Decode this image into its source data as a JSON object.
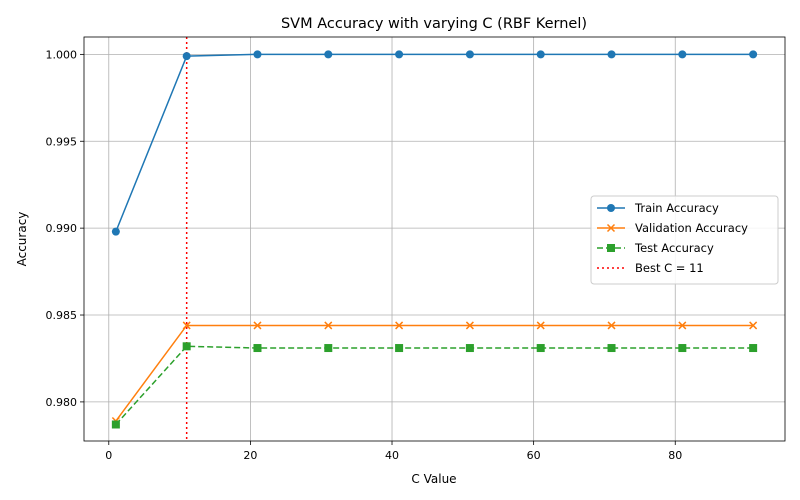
{
  "chart_data": {
    "type": "line",
    "title": "SVM Accuracy with varying C (RBF Kernel)",
    "xlabel": "C Value",
    "ylabel": "Accuracy",
    "xlim": [
      -3.5,
      95.5
    ],
    "ylim": [
      0.97775,
      1.001
    ],
    "x": [
      1,
      11,
      21,
      31,
      41,
      51,
      61,
      71,
      81,
      91
    ],
    "x_ticks": [
      0,
      20,
      40,
      60,
      80
    ],
    "x_tick_labels": [
      "0",
      "20",
      "40",
      "60",
      "80"
    ],
    "y_ticks": [
      0.98,
      0.985,
      0.99,
      0.995,
      1.0
    ],
    "y_tick_labels": [
      "0.980",
      "0.985",
      "0.990",
      "0.995",
      "1.000"
    ],
    "grid": true,
    "legend_position": "center-right",
    "series": [
      {
        "name": "Train Accuracy",
        "color": "#1f77b4",
        "marker": "circle",
        "linestyle": "solid",
        "values": [
          0.9898,
          0.9999,
          1.0,
          1.0,
          1.0,
          1.0,
          1.0,
          1.0,
          1.0,
          1.0
        ]
      },
      {
        "name": "Validation Accuracy",
        "color": "#ff7f0e",
        "marker": "x",
        "linestyle": "solid",
        "values": [
          0.9789,
          0.9844,
          0.9844,
          0.9844,
          0.9844,
          0.9844,
          0.9844,
          0.9844,
          0.9844,
          0.9844
        ]
      },
      {
        "name": "Test Accuracy",
        "color": "#2ca02c",
        "marker": "square",
        "linestyle": "dashed",
        "values": [
          0.9787,
          0.9832,
          0.9831,
          0.9831,
          0.9831,
          0.9831,
          0.9831,
          0.9831,
          0.9831,
          0.9831
        ]
      }
    ],
    "vline": {
      "x": 11,
      "label": "Best C = 11",
      "color": "#ff0000",
      "linestyle": "dotted"
    }
  }
}
